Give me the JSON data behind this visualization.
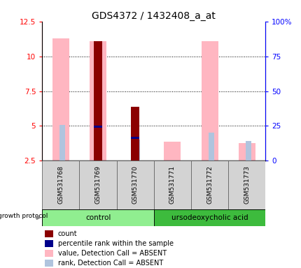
{
  "title": "GDS4372 / 1432408_a_at",
  "samples": [
    "GSM531768",
    "GSM531769",
    "GSM531770",
    "GSM531771",
    "GSM531772",
    "GSM531773"
  ],
  "ylim_left": [
    2.5,
    12.5
  ],
  "ylim_right": [
    0,
    100
  ],
  "yticks_left": [
    2.5,
    5.0,
    7.5,
    10.0,
    12.5
  ],
  "ytick_labels_left": [
    "2.5",
    "5",
    "7.5",
    "10",
    "12.5"
  ],
  "yticks_right": [
    0,
    25,
    50,
    75,
    100
  ],
  "ytick_labels_right": [
    "0",
    "25",
    "50",
    "75",
    "100%"
  ],
  "absent_value_bars": [
    11.3,
    11.1,
    null,
    3.85,
    11.1,
    3.75
  ],
  "absent_rank_bars": [
    5.05,
    null,
    4.0,
    null,
    4.5,
    3.9
  ],
  "count_bars": [
    null,
    11.1,
    6.4,
    null,
    null,
    null
  ],
  "percentile_bars": [
    null,
    4.85,
    4.05,
    null,
    null,
    null
  ],
  "bar_bottom": 2.5,
  "color_absent_value": "#ffb6c1",
  "color_absent_rank": "#b0c4de",
  "color_count": "#8b0000",
  "color_percentile": "#00008b",
  "control_color": "#90ee90",
  "urso_color": "#3dbb3d",
  "label_bg": "#d3d3d3",
  "title_fontsize": 10,
  "tick_fontsize": 7.5,
  "legend_fontsize": 7
}
